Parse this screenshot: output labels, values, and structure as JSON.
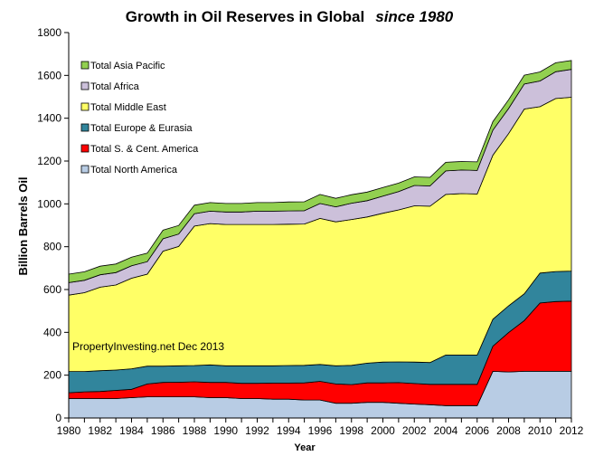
{
  "chart_data": {
    "type": "area",
    "stacked": true,
    "title": "Growth in Oil Reserves in Global",
    "title_italic": "since 1980",
    "xlabel": "Year",
    "ylabel": "Billion Barrels Oil",
    "ylim": [
      0,
      1800
    ],
    "yticks": [
      "0",
      "200",
      "400",
      "600",
      "800",
      "1000",
      "1200",
      "1400",
      "1600",
      "1800"
    ],
    "xticks": [
      "1980",
      "1982",
      "1984",
      "1986",
      "1988",
      "1990",
      "1992",
      "1994",
      "1996",
      "1998",
      "2000",
      "2002",
      "2004",
      "2006",
      "2008",
      "2010",
      "2012"
    ],
    "grid": false,
    "legend_position": "top-left",
    "annotation": "PropertyInvesting.net  Dec 2013",
    "x": [
      1980,
      1981,
      1982,
      1983,
      1984,
      1985,
      1986,
      1987,
      1988,
      1989,
      1990,
      1991,
      1992,
      1993,
      1994,
      1995,
      1996,
      1997,
      1998,
      1999,
      2000,
      2001,
      2002,
      2003,
      2004,
      2005,
      2006,
      2007,
      2008,
      2009,
      2010,
      2011,
      2012
    ],
    "series": [
      {
        "name": "Total North America",
        "color": "#b8cce4",
        "values": [
          91,
          91,
          91,
          91,
          95,
          99,
          99,
          99,
          99,
          95,
          95,
          91,
          91,
          88,
          88,
          84,
          84,
          69,
          69,
          73,
          73,
          69,
          65,
          62,
          58,
          58,
          58,
          218,
          215,
          218,
          218,
          218,
          218
        ]
      },
      {
        "name": "Total S. & Cent. America",
        "color": "#ff0000",
        "values": [
          27,
          31,
          33,
          38,
          39,
          60,
          67,
          68,
          70,
          71,
          71,
          71,
          71,
          75,
          75,
          80,
          87,
          90,
          87,
          91,
          91,
          96,
          96,
          95,
          99,
          99,
          99,
          117,
          184,
          237,
          319,
          326,
          328
        ]
      },
      {
        "name": "Total Europe & Eurasia",
        "color": "#31859c",
        "values": [
          99,
          95,
          97,
          95,
          96,
          83,
          76,
          77,
          76,
          82,
          78,
          82,
          82,
          81,
          82,
          82,
          79,
          85,
          90,
          92,
          97,
          97,
          100,
          102,
          137,
          137,
          137,
          126,
          125,
          125,
          140,
          140,
          140
        ]
      },
      {
        "name": "Total Middle East",
        "color": "#ffff66",
        "values": [
          357,
          368,
          390,
          397,
          423,
          430,
          537,
          557,
          651,
          660,
          660,
          660,
          660,
          660,
          660,
          660,
          682,
          672,
          681,
          683,
          695,
          710,
          730,
          730,
          750,
          754,
          752,
          766,
          804,
          863,
          777,
          808,
          812
        ]
      },
      {
        "name": "Total Africa",
        "color": "#ccc0da",
        "values": [
          58,
          58,
          58,
          58,
          58,
          58,
          58,
          58,
          58,
          58,
          58,
          58,
          62,
          62,
          62,
          62,
          70,
          70,
          76,
          76,
          80,
          85,
          95,
          95,
          110,
          110,
          110,
          117,
          117,
          117,
          120,
          125,
          130
        ]
      },
      {
        "name": "Total Asia Pacific",
        "color": "#92d050",
        "values": [
          40,
          40,
          40,
          40,
          40,
          40,
          40,
          40,
          40,
          40,
          40,
          40,
          40,
          40,
          42,
          42,
          42,
          40,
          40,
          40,
          40,
          40,
          40,
          40,
          40,
          40,
          40,
          40,
          41,
          41,
          42,
          42,
          42
        ]
      }
    ]
  }
}
